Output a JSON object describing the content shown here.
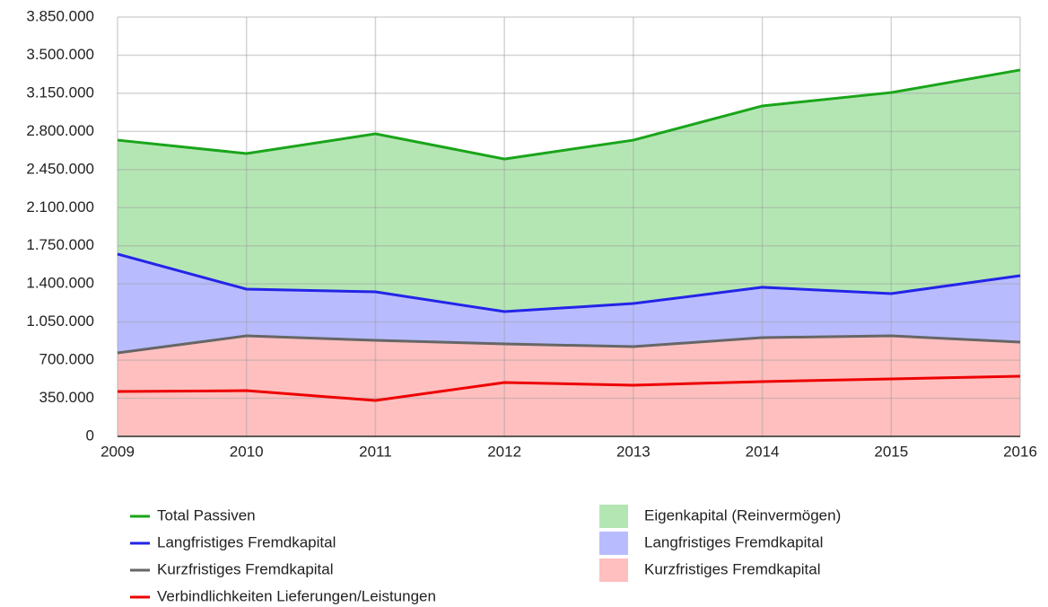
{
  "chart_data": {
    "type": "stacked_area",
    "categories": [
      "2009",
      "2010",
      "2011",
      "2012",
      "2013",
      "2014",
      "2015",
      "2016"
    ],
    "series": [
      {
        "name": "Kurzfristiges Fremdkapital",
        "color": "#ffbfbf",
        "values": [
          767000,
          923000,
          882000,
          849000,
          824000,
          907000,
          923000,
          866000
        ]
      },
      {
        "name": "Langfristiges Fremdkapital",
        "color": "#b8bcff",
        "values": [
          907000,
          429000,
          445000,
          297000,
          396000,
          462000,
          388000,
          610000
        ]
      },
      {
        "name": "Eigenkapital (Reinvermögen)",
        "color": "#b4e6b4",
        "values": [
          1046000,
          1245000,
          1451000,
          1401000,
          1500000,
          1665000,
          1846000,
          1888000
        ]
      }
    ],
    "lines": [
      {
        "name": "Total Passiven",
        "color": "#1aa51a"
      },
      {
        "name": "Langfristiges Fremdkapital",
        "color": "#2424e8"
      },
      {
        "name": "Kurzfristiges Fremdkapital",
        "color": "#666666"
      },
      {
        "name": "Verbindlichkeiten Lieferungen/Leistungen",
        "color": "#ee0000",
        "values": [
          412000,
          420000,
          330000,
          495000,
          470000,
          503000,
          528000,
          552000
        ]
      }
    ],
    "ylim": [
      0,
      3850000
    ],
    "yticks": [
      0,
      {
        "value": 350000,
        "label": "350.000"
      },
      {
        "value": 700000,
        "label": "700.000"
      },
      {
        "value": 1050000,
        "label": "1.050.000"
      },
      {
        "value": 1400000,
        "label": "1.400.000"
      },
      {
        "value": 1750000,
        "label": "1.750.000"
      },
      {
        "value": 2100000,
        "label": "2.100.000"
      },
      {
        "value": 2450000,
        "label": "2.450.000"
      },
      {
        "value": 2800000,
        "label": "2.800.000"
      },
      {
        "value": 3150000,
        "label": "3.150.000"
      },
      {
        "value": 3500000,
        "label": "3.500.000"
      },
      {
        "value": 3850000,
        "label": "3.850.000"
      }
    ],
    "grid": true
  }
}
